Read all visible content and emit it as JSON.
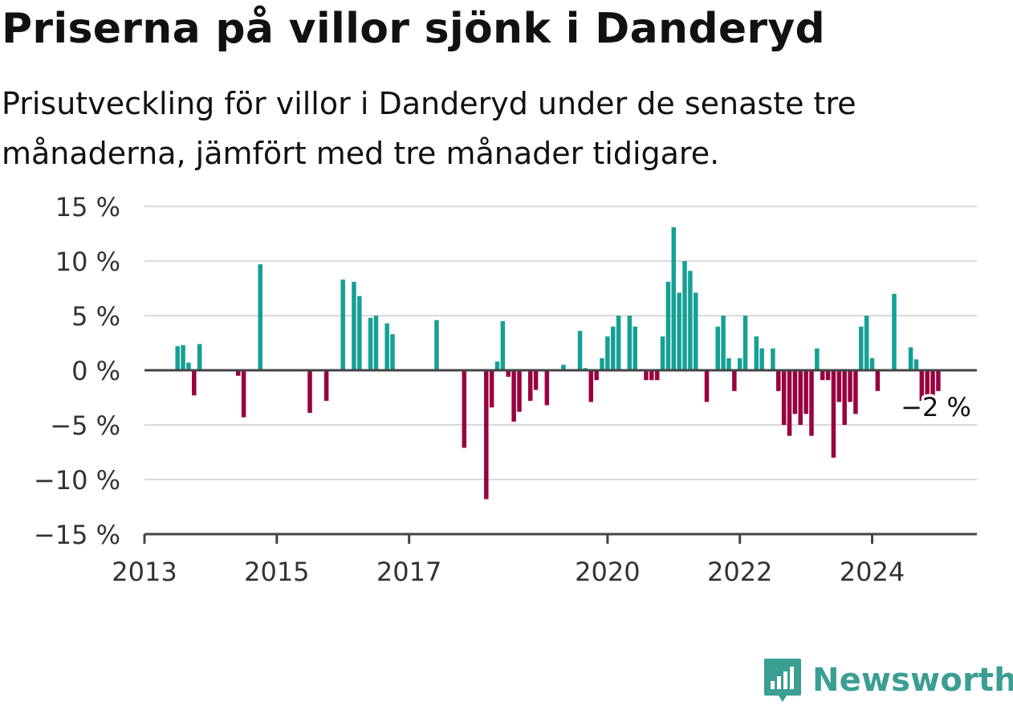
{
  "header": {
    "title": "Priserna på villor sjönk i Danderyd",
    "subtitle": "Prisutveckling för villor i Danderyd under de senaste tre månaderna, jämfört med tre månader tidigare."
  },
  "brand": {
    "name": "Newsworthy",
    "icon": "chart-logo-icon",
    "color": "#3a9e92"
  },
  "colors": {
    "positive": "#15a095",
    "negative": "#99003f",
    "gridline": "#d9d9d9",
    "axis": "#444444"
  },
  "chart_data": {
    "type": "bar",
    "title": "Priserna på villor sjönk i Danderyd",
    "xlabel": "",
    "ylabel": "",
    "unit": "%",
    "ylim": [
      -15,
      15
    ],
    "xlim": [
      "2013-01",
      "2025-08"
    ],
    "y_ticks": [
      15,
      10,
      5,
      0,
      -5,
      -10,
      -15
    ],
    "y_tick_labels": [
      "15 %",
      "10 %",
      "5 %",
      "0 %",
      "−5 %",
      "−10 %",
      "−15 %"
    ],
    "x_ticks": [
      "2013-01",
      "2015-01",
      "2017-01",
      "2020-01",
      "2022-01",
      "2024-01"
    ],
    "x_tick_labels": [
      "2013",
      "2015",
      "2017",
      "2020",
      "2022",
      "2024"
    ],
    "grid": true,
    "legend": "none",
    "annotation": {
      "text": "−2 %",
      "target": "2024-12"
    },
    "series": [
      {
        "points": [
          {
            "x": "2013-07",
            "y": 2.2
          },
          {
            "x": "2013-08",
            "y": 2.3
          },
          {
            "x": "2013-09",
            "y": 0.7
          },
          {
            "x": "2013-10",
            "y": -2.3
          },
          {
            "x": "2013-11",
            "y": 2.4
          },
          {
            "x": "2014-06",
            "y": -0.5
          },
          {
            "x": "2014-07",
            "y": -4.3
          },
          {
            "x": "2014-10",
            "y": 9.7
          },
          {
            "x": "2015-07",
            "y": -3.9
          },
          {
            "x": "2015-10",
            "y": -2.8
          },
          {
            "x": "2016-01",
            "y": 8.3
          },
          {
            "x": "2016-03",
            "y": 8.1
          },
          {
            "x": "2016-04",
            "y": 6.8
          },
          {
            "x": "2016-06",
            "y": 4.8
          },
          {
            "x": "2016-07",
            "y": 5.0
          },
          {
            "x": "2016-09",
            "y": 4.3
          },
          {
            "x": "2016-10",
            "y": 3.3
          },
          {
            "x": "2017-06",
            "y": 4.6
          },
          {
            "x": "2017-11",
            "y": -7.1
          },
          {
            "x": "2018-03",
            "y": -11.8
          },
          {
            "x": "2018-04",
            "y": -3.4
          },
          {
            "x": "2018-05",
            "y": 0.8
          },
          {
            "x": "2018-06",
            "y": 4.5
          },
          {
            "x": "2018-07",
            "y": -0.6
          },
          {
            "x": "2018-08",
            "y": -4.7
          },
          {
            "x": "2018-09",
            "y": -3.8
          },
          {
            "x": "2018-11",
            "y": -2.8
          },
          {
            "x": "2018-12",
            "y": -1.8
          },
          {
            "x": "2019-02",
            "y": -3.2
          },
          {
            "x": "2019-05",
            "y": 0.5
          },
          {
            "x": "2019-08",
            "y": 3.6
          },
          {
            "x": "2019-09",
            "y": 0.2
          },
          {
            "x": "2019-10",
            "y": -2.9
          },
          {
            "x": "2019-11",
            "y": -0.9
          },
          {
            "x": "2019-12",
            "y": 1.1
          },
          {
            "x": "2020-01",
            "y": 3.1
          },
          {
            "x": "2020-02",
            "y": 4.0
          },
          {
            "x": "2020-03",
            "y": 5.0
          },
          {
            "x": "2020-05",
            "y": 5.0
          },
          {
            "x": "2020-06",
            "y": 4.0
          },
          {
            "x": "2020-08",
            "y": -0.9
          },
          {
            "x": "2020-09",
            "y": -0.9
          },
          {
            "x": "2020-10",
            "y": -0.9
          },
          {
            "x": "2020-11",
            "y": 3.1
          },
          {
            "x": "2020-12",
            "y": 8.1
          },
          {
            "x": "2021-01",
            "y": 13.1
          },
          {
            "x": "2021-02",
            "y": 7.1
          },
          {
            "x": "2021-03",
            "y": 10.0
          },
          {
            "x": "2021-04",
            "y": 9.1
          },
          {
            "x": "2021-05",
            "y": 7.1
          },
          {
            "x": "2021-07",
            "y": -2.9
          },
          {
            "x": "2021-09",
            "y": 4.0
          },
          {
            "x": "2021-10",
            "y": 5.0
          },
          {
            "x": "2021-11",
            "y": 1.1
          },
          {
            "x": "2021-12",
            "y": -1.9
          },
          {
            "x": "2022-01",
            "y": 1.1
          },
          {
            "x": "2022-02",
            "y": 5.0
          },
          {
            "x": "2022-04",
            "y": 3.1
          },
          {
            "x": "2022-05",
            "y": 2.0
          },
          {
            "x": "2022-07",
            "y": 2.0
          },
          {
            "x": "2022-08",
            "y": -1.9
          },
          {
            "x": "2022-09",
            "y": -5.0
          },
          {
            "x": "2022-10",
            "y": -6.0
          },
          {
            "x": "2022-11",
            "y": -4.0
          },
          {
            "x": "2022-12",
            "y": -5.0
          },
          {
            "x": "2023-01",
            "y": -4.0
          },
          {
            "x": "2023-02",
            "y": -6.0
          },
          {
            "x": "2023-03",
            "y": 2.0
          },
          {
            "x": "2023-04",
            "y": -0.9
          },
          {
            "x": "2023-05",
            "y": -0.9
          },
          {
            "x": "2023-06",
            "y": -8.0
          },
          {
            "x": "2023-07",
            "y": -2.9
          },
          {
            "x": "2023-08",
            "y": -5.0
          },
          {
            "x": "2023-09",
            "y": -2.9
          },
          {
            "x": "2023-10",
            "y": -4.0
          },
          {
            "x": "2023-11",
            "y": 4.0
          },
          {
            "x": "2023-12",
            "y": 5.0
          },
          {
            "x": "2024-01",
            "y": 1.1
          },
          {
            "x": "2024-02",
            "y": -1.9
          },
          {
            "x": "2024-05",
            "y": 7.0
          },
          {
            "x": "2024-08",
            "y": 2.1
          },
          {
            "x": "2024-09",
            "y": 1.0
          },
          {
            "x": "2024-10",
            "y": -2.8
          },
          {
            "x": "2024-11",
            "y": -2.6
          },
          {
            "x": "2024-12",
            "y": -2.5
          },
          {
            "x": "2025-01",
            "y": -1.9
          }
        ]
      }
    ]
  }
}
